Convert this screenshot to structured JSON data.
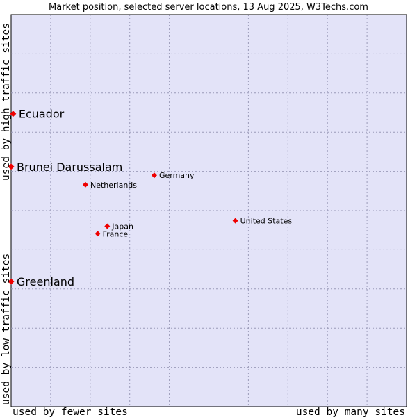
{
  "chart_data": {
    "type": "scatter",
    "title": "Market position, selected server locations, 13 Aug 2025, W3Techs.com",
    "xlabel_left": "used by fewer sites",
    "xlabel_right": "used by many sites",
    "ylabel_bottom": "used by low traffic sites",
    "ylabel_top": "used by high traffic sites",
    "xlim": [
      0,
      100
    ],
    "ylim": [
      0,
      100
    ],
    "grid": true,
    "legend": "none",
    "colors": {
      "plot_background": "#e3e3f8",
      "grid": "#9a9ab8",
      "marker": "#ee0000"
    },
    "highlighted": [
      {
        "label": "Ecuador",
        "x": 0.5,
        "y": 74.7
      },
      {
        "label": "Brunei Darussalam",
        "x": 0.0,
        "y": 61.2
      },
      {
        "label": "Greenland",
        "x": 0.0,
        "y": 31.9
      }
    ],
    "points": [
      {
        "label": "Germany",
        "x": 36.2,
        "y": 59.0
      },
      {
        "label": "Netherlands",
        "x": 18.8,
        "y": 56.6
      },
      {
        "label": "United States",
        "x": 56.7,
        "y": 47.4
      },
      {
        "label": "Japan",
        "x": 24.3,
        "y": 46.0
      },
      {
        "label": "France",
        "x": 21.9,
        "y": 44.1
      }
    ]
  }
}
